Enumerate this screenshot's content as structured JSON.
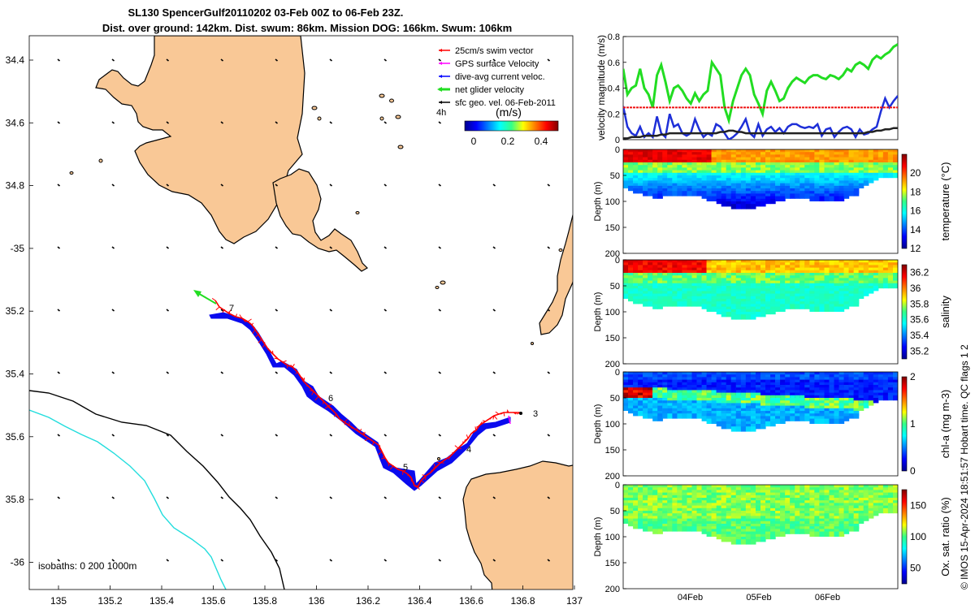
{
  "header": {
    "title_line1": "SL130 SpencerGulf20110202 03-Feb 00Z to 06-Feb 23Z.",
    "title_line2": "Dist. over ground: 142km. Dist. swum: 86km. Mission DOG: 166km. Swum: 106km"
  },
  "colors": {
    "land": "#f9c896",
    "swim_vector": "#ff0000",
    "gps_velocity": "#ff00ff",
    "dive_avg": "#0000ff",
    "net_glider": "#00dd00",
    "sfc_geo": "#000000",
    "isobath_cyan": "#22dddd"
  },
  "map": {
    "legend": [
      {
        "label": "25cm/s swim vector",
        "color": "#ff0000"
      },
      {
        "label": "GPS surface Velocity",
        "color": "#ff00ff"
      },
      {
        "label": "dive-avg current veloc.",
        "color": "#0000ff"
      },
      {
        "label": "net glider velocity",
        "color": "#00dd00"
      },
      {
        "label": "sfc geo. vel. 06-Feb-2011",
        "color": "#000000"
      }
    ],
    "colorbar_title": "(m/s)",
    "colorbar_side_label": "4h",
    "colorbar_ticks": [
      "0",
      "0.2",
      "0.4"
    ],
    "colorbar_range": [
      -0.05,
      0.5
    ],
    "isobaths_label": "isobaths: 0   200  1000m",
    "lon_ticks": [
      "135",
      "135.2",
      "135.4",
      "135.6",
      "135.8",
      "136",
      "136.2",
      "136.4",
      "136.6",
      "136.8",
      "137"
    ],
    "lat_ticks": [
      "34.4",
      "34.6",
      "34.8",
      "-35",
      "35.2",
      "35.4",
      "35.6",
      "35.8",
      "-36"
    ],
    "track_labels": [
      "7",
      "6",
      "5",
      "4",
      "3"
    ]
  },
  "chart_data": [
    {
      "type": "line",
      "title": "",
      "ylabel": "velocity magnitude (m/s)",
      "ylim": [
        0,
        0.8
      ],
      "yticks": [
        "0",
        "0.2",
        "0.4",
        "0.6",
        "0.8"
      ],
      "x_start_day": 3.0,
      "x_end_day": 7.0,
      "series": [
        {
          "name": "net glider velocity",
          "color": "#22dd22",
          "values": [
            0.55,
            0.35,
            0.4,
            0.42,
            0.55,
            0.4,
            0.35,
            0.25,
            0.5,
            0.58,
            0.45,
            0.3,
            0.4,
            0.42,
            0.38,
            0.32,
            0.28,
            0.36,
            0.3,
            0.35,
            0.38,
            0.6,
            0.55,
            0.5,
            0.25,
            0.15,
            0.3,
            0.4,
            0.5,
            0.55,
            0.5,
            0.35,
            0.28,
            0.2,
            0.38,
            0.45,
            0.38,
            0.3,
            0.32,
            0.4,
            0.45,
            0.48,
            0.46,
            0.44,
            0.48,
            0.5,
            0.5,
            0.48,
            0.47,
            0.5,
            0.49,
            0.47,
            0.5,
            0.55,
            0.53,
            0.58,
            0.6,
            0.58,
            0.55,
            0.62,
            0.65,
            0.63,
            0.66,
            0.68,
            0.72,
            0.74
          ]
        },
        {
          "name": "dive-avg current veloc.",
          "color": "#1e2fd8",
          "values": [
            0.26,
            0.1,
            0.05,
            0.03,
            0.1,
            0.02,
            0.05,
            0.02,
            0.18,
            0.05,
            0.02,
            0.2,
            0.1,
            0.12,
            0.05,
            0.03,
            0.05,
            0.16,
            0.08,
            0.02,
            0.05,
            0.03,
            0.12,
            0.1,
            0.05,
            0.0,
            0.02,
            0.05,
            0.1,
            0.16,
            0.05,
            0.02,
            0.12,
            0.03,
            0.08,
            0.1,
            0.06,
            0.09,
            0.05,
            0.1,
            0.12,
            0.12,
            0.1,
            0.09,
            0.1,
            0.09,
            0.12,
            0.03,
            0.08,
            0.09,
            0.02,
            0.06,
            0.09,
            0.1,
            0.08,
            0.02,
            0.08,
            0.04,
            0.05,
            0.08,
            0.1,
            0.22,
            0.32,
            0.25,
            0.3,
            0.34
          ]
        },
        {
          "name": "sfc geo. vel.",
          "color": "#222222",
          "values": [
            0.01,
            0.01,
            0.02,
            0.02,
            0.02,
            0.03,
            0.03,
            0.03,
            0.03,
            0.04,
            0.04,
            0.05,
            0.05,
            0.05,
            0.05,
            0.05,
            0.05,
            0.05,
            0.05,
            0.05,
            0.05,
            0.05,
            0.05,
            0.06,
            0.06,
            0.07,
            0.07,
            0.06,
            0.06,
            0.05,
            0.05,
            0.05,
            0.05,
            0.05,
            0.05,
            0.05,
            0.05,
            0.05,
            0.05,
            0.05,
            0.05,
            0.05,
            0.05,
            0.05,
            0.05,
            0.05,
            0.05,
            0.05,
            0.05,
            0.05,
            0.05,
            0.05,
            0.05,
            0.05,
            0.05,
            0.05,
            0.05,
            0.05,
            0.06,
            0.06,
            0.07,
            0.07,
            0.08,
            0.08,
            0.09,
            0.09
          ]
        },
        {
          "name": "25cm/s swim vector",
          "color": "#ee1111",
          "constant": 0.25
        }
      ]
    },
    {
      "type": "heatmap",
      "variable": "temperature",
      "cbar_label": "temperature (°C)",
      "ylabel": "Depth (m)",
      "ylim": [
        200,
        0
      ],
      "yticks": [
        "0",
        "50",
        "100",
        "150",
        "200"
      ],
      "cbar_ticks": [
        "12",
        "14",
        "16",
        "18",
        "20"
      ],
      "cbar_range": [
        12,
        22
      ]
    },
    {
      "type": "heatmap",
      "variable": "salinity",
      "cbar_label": "salinity",
      "ylabel": "Depth (m)",
      "ylim": [
        200,
        0
      ],
      "yticks": [
        "0",
        "50",
        "100",
        "150",
        "200"
      ],
      "cbar_ticks": [
        "35.2",
        "35.4",
        "35.6",
        "35.8",
        "36",
        "36.2"
      ],
      "cbar_range": [
        35.1,
        36.3
      ]
    },
    {
      "type": "heatmap",
      "variable": "chl-a",
      "cbar_label": "chl-a (mg m-3)",
      "ylabel": "Depth (m)",
      "ylim": [
        200,
        0
      ],
      "yticks": [
        "0",
        "50",
        "100",
        "150",
        "200"
      ],
      "cbar_ticks": [
        "0",
        "1",
        "2"
      ],
      "cbar_range": [
        0,
        2
      ]
    },
    {
      "type": "heatmap",
      "variable": "oxygen",
      "cbar_label": "Ox. sat. ratio (%)",
      "ylabel": "Depth (m)",
      "ylim": [
        200,
        0
      ],
      "yticks": [
        "0",
        "50",
        "100",
        "150",
        "200"
      ],
      "cbar_ticks": [
        "50",
        "100",
        "150"
      ],
      "cbar_range": [
        25,
        175
      ],
      "xticks": [
        "04Feb",
        "05Feb",
        "06Feb"
      ],
      "xtick_days": [
        4,
        5,
        6
      ]
    }
  ],
  "credit": "© IMOS 15-Apr-2024 18:51:57 Hobart time. QC flags 1  2"
}
